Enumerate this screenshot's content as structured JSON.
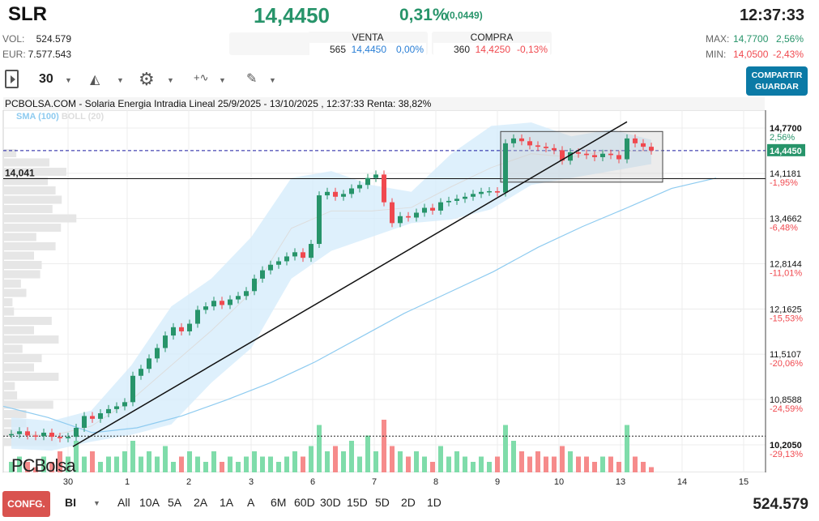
{
  "header": {
    "ticker": "SLR",
    "price": "14,4450",
    "change_pct": "0,31%",
    "change_abs": "(0,0449)",
    "time": "12:37:33",
    "vol_label": "VOL:",
    "vol": "524.579",
    "eur_label": "EUR:",
    "eur": "7.577.543",
    "sell": {
      "label": "VENTA",
      "qty": "565",
      "price": "14,4450",
      "pct": "0,00%"
    },
    "buy": {
      "label": "COMPRA",
      "qty": "360",
      "price": "14,4250",
      "pct": "-0,13%"
    },
    "max_label": "MAX:",
    "max": "14,7700",
    "max_pct": "2,56%",
    "min_label": "MIN:",
    "min": "14,0500",
    "min_pct": "-2,43%"
  },
  "toolbar": {
    "interval": "30",
    "share_label": "COMPARTIR",
    "save_label": "GUARDAR"
  },
  "colors": {
    "up": "#27946a",
    "down": "#f0494f",
    "accent": "#0b7aa6",
    "sma": "#8ecbf0",
    "band": "#d6ecfb"
  },
  "chart_data": {
    "type": "candlestick",
    "title": "PCBOLSA.COM - Solaria Energia Intradia Lineal 25/9/2025 - 13/10/2025 , 12:37:33 Renta: 38,82%",
    "indicators": [
      "SMA (100)",
      "BOLL (20)"
    ],
    "y_ticks": [
      {
        "price": "14,7700",
        "pct": "2,56%"
      },
      {
        "price": "14,1181",
        "pct": "-1,95%"
      },
      {
        "price": "13,4662",
        "pct": "-6,48%"
      },
      {
        "price": "12,8144",
        "pct": "-11,01%"
      },
      {
        "price": "12,1625",
        "pct": "-15,53%"
      },
      {
        "price": "11,5107",
        "pct": "-20,06%"
      },
      {
        "price": "10,8588",
        "pct": "-24,59%"
      },
      {
        "price": "10,2050",
        "pct": "-29,13%"
      }
    ],
    "ylim": [
      10.205,
      14.77
    ],
    "x_ticks": [
      "30",
      "1",
      "2",
      "3",
      "6",
      "7",
      "8",
      "9",
      "10",
      "13",
      "14",
      "15"
    ],
    "last_price_label": "14,4450",
    "last_price": 14.445,
    "hline_label": "14,041",
    "hline": 14.041,
    "dotted_line": 10.33,
    "close": [
      10.36,
      10.4,
      10.34,
      10.33,
      10.38,
      10.32,
      10.3,
      10.32,
      10.45,
      10.62,
      10.58,
      10.66,
      10.72,
      10.76,
      10.82,
      11.2,
      11.3,
      11.45,
      11.6,
      11.78,
      11.9,
      11.84,
      11.95,
      12.15,
      12.2,
      12.28,
      12.22,
      12.3,
      12.35,
      12.42,
      12.6,
      12.72,
      12.8,
      12.85,
      12.92,
      12.98,
      12.9,
      13.1,
      13.8,
      13.85,
      13.78,
      13.82,
      13.9,
      13.95,
      14.05,
      14.1,
      13.7,
      13.4,
      13.5,
      13.48,
      13.55,
      13.62,
      13.58,
      13.7,
      13.72,
      13.75,
      13.78,
      13.82,
      13.85,
      13.86,
      13.84,
      14.55,
      14.62,
      14.58,
      14.52,
      14.5,
      14.48,
      14.45,
      14.3,
      14.42,
      14.4,
      14.38,
      14.35,
      14.4,
      14.38,
      14.32,
      14.62,
      14.55,
      14.5,
      14.445
    ],
    "volume": [
      0.2,
      0.3,
      0.2,
      0.1,
      0.3,
      0.2,
      0.4,
      0.3,
      0.6,
      0.3,
      0.4,
      0.2,
      0.3,
      0.3,
      0.4,
      0.6,
      0.3,
      0.4,
      0.3,
      0.5,
      0.2,
      0.3,
      0.4,
      0.3,
      0.2,
      0.4,
      0.2,
      0.3,
      0.2,
      0.3,
      0.4,
      0.3,
      0.3,
      0.2,
      0.3,
      0.4,
      0.3,
      0.5,
      0.9,
      0.4,
      0.5,
      0.4,
      0.6,
      0.3,
      0.7,
      0.4,
      1.0,
      0.5,
      0.4,
      0.3,
      0.4,
      0.3,
      0.2,
      0.5,
      0.3,
      0.4,
      0.3,
      0.2,
      0.3,
      0.2,
      0.3,
      0.9,
      0.6,
      0.4,
      0.3,
      0.4,
      0.3,
      0.3,
      0.5,
      0.4,
      0.3,
      0.3,
      0.2,
      0.3,
      0.3,
      0.2,
      0.9,
      0.3,
      0.2,
      0.1
    ],
    "sma100": [
      10.76,
      10.6,
      10.38,
      10.45,
      10.62,
      10.85,
      11.1,
      11.4,
      11.75,
      12.1,
      12.4,
      12.7,
      13.05,
      13.35,
      13.62,
      13.9,
      14.05
    ],
    "boll_upper": [
      10.6,
      10.55,
      10.7,
      11.35,
      12.2,
      12.6,
      13.2,
      14.05,
      14.15,
      13.95,
      13.85,
      14.4,
      14.8,
      14.85,
      14.65,
      14.75,
      14.6
    ],
    "boll_lower": [
      10.15,
      10.12,
      10.25,
      10.35,
      10.5,
      11.1,
      11.6,
      12.6,
      13.0,
      13.2,
      13.4,
      13.45,
      13.6,
      13.95,
      14.05,
      14.15,
      14.25
    ],
    "trendline": [
      [
        7.6,
        10.18
      ],
      [
        76,
        14.86
      ]
    ],
    "box": [
      [
        61,
        14.72
      ],
      [
        80,
        13.99
      ]
    ],
    "volume_profile": [
      0.17,
      0.6,
      0.82,
      0.58,
      0.68,
      0.76,
      0.64,
      0.95,
      0.75,
      0.43,
      0.68,
      0.4,
      0.5,
      0.48,
      0.23,
      0.3,
      0.12,
      0.14,
      0.63,
      0.4,
      0.72,
      0.25,
      0.5,
      0.4,
      0.72,
      0.15,
      0.18,
      0.65,
      0.3,
      0.3,
      0.2,
      0.7
    ]
  },
  "footer": {
    "config_label": "CONFG.",
    "mode": "BI",
    "ranges": [
      "All",
      "10A",
      "5A",
      "2A",
      "1A",
      "A",
      "6M",
      "60D",
      "30D",
      "15D",
      "5D",
      "2D",
      "1D"
    ],
    "volume": "524.579"
  },
  "logo": "PCBolsa"
}
